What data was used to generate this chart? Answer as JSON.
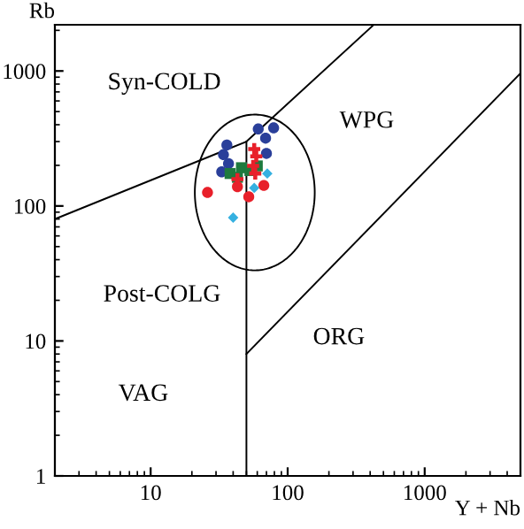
{
  "chart_data": {
    "type": "scatter",
    "xlabel": "Y + Nb",
    "ylabel": "Rb",
    "log": "xy",
    "xlim": [
      2,
      5000
    ],
    "ylim": [
      1,
      2200
    ],
    "xticks": [
      10,
      100,
      1000
    ],
    "yticks": [
      1,
      10,
      100,
      1000
    ],
    "grid": false,
    "legend": false,
    "series": [
      {
        "type": "line",
        "color": "#000000",
        "marker": "none",
        "x": [
          2,
          50,
          425
        ],
        "values": [
          80,
          300,
          2200
        ]
      },
      {
        "type": "line",
        "color": "#000000",
        "marker": "none",
        "x": [
          50,
          50
        ],
        "values": [
          1,
          300
        ]
      },
      {
        "type": "line",
        "color": "#000000",
        "marker": "none",
        "x": [
          50,
          5000
        ],
        "values": [
          8,
          960
        ]
      },
      {
        "color": "#2a3f9a",
        "marker": "circle",
        "x": [
          61,
          79,
          69,
          70,
          36,
          34,
          37,
          33
        ],
        "values": [
          372,
          379,
          318,
          245,
          283,
          240,
          206,
          179
        ]
      },
      {
        "type": "scatter",
        "color": "#1e7a3e",
        "marker": "square",
        "x": [
          38,
          46,
          53,
          60,
          43
        ],
        "values": [
          174,
          192,
          183,
          198,
          163
        ]
      },
      {
        "type": "scatter",
        "color": "#e8202a",
        "marker": "circle",
        "x": [
          26,
          43,
          52,
          67
        ],
        "values": [
          126,
          139,
          117,
          142
        ]
      },
      {
        "type": "scatter",
        "color": "#e8202a",
        "marker": "cross",
        "x": [
          57,
          59,
          56,
          43,
          58
        ],
        "values": [
          264,
          233,
          198,
          158,
          174
        ]
      },
      {
        "type": "scatter",
        "color": "#35b0e0",
        "marker": "diamond",
        "x": [
          71,
          57,
          40
        ],
        "values": [
          174,
          136,
          82
        ]
      }
    ],
    "annotations": [
      "Syn-COLD",
      "WPG",
      "Post-COLG",
      "ORG",
      "VAG"
    ]
  }
}
